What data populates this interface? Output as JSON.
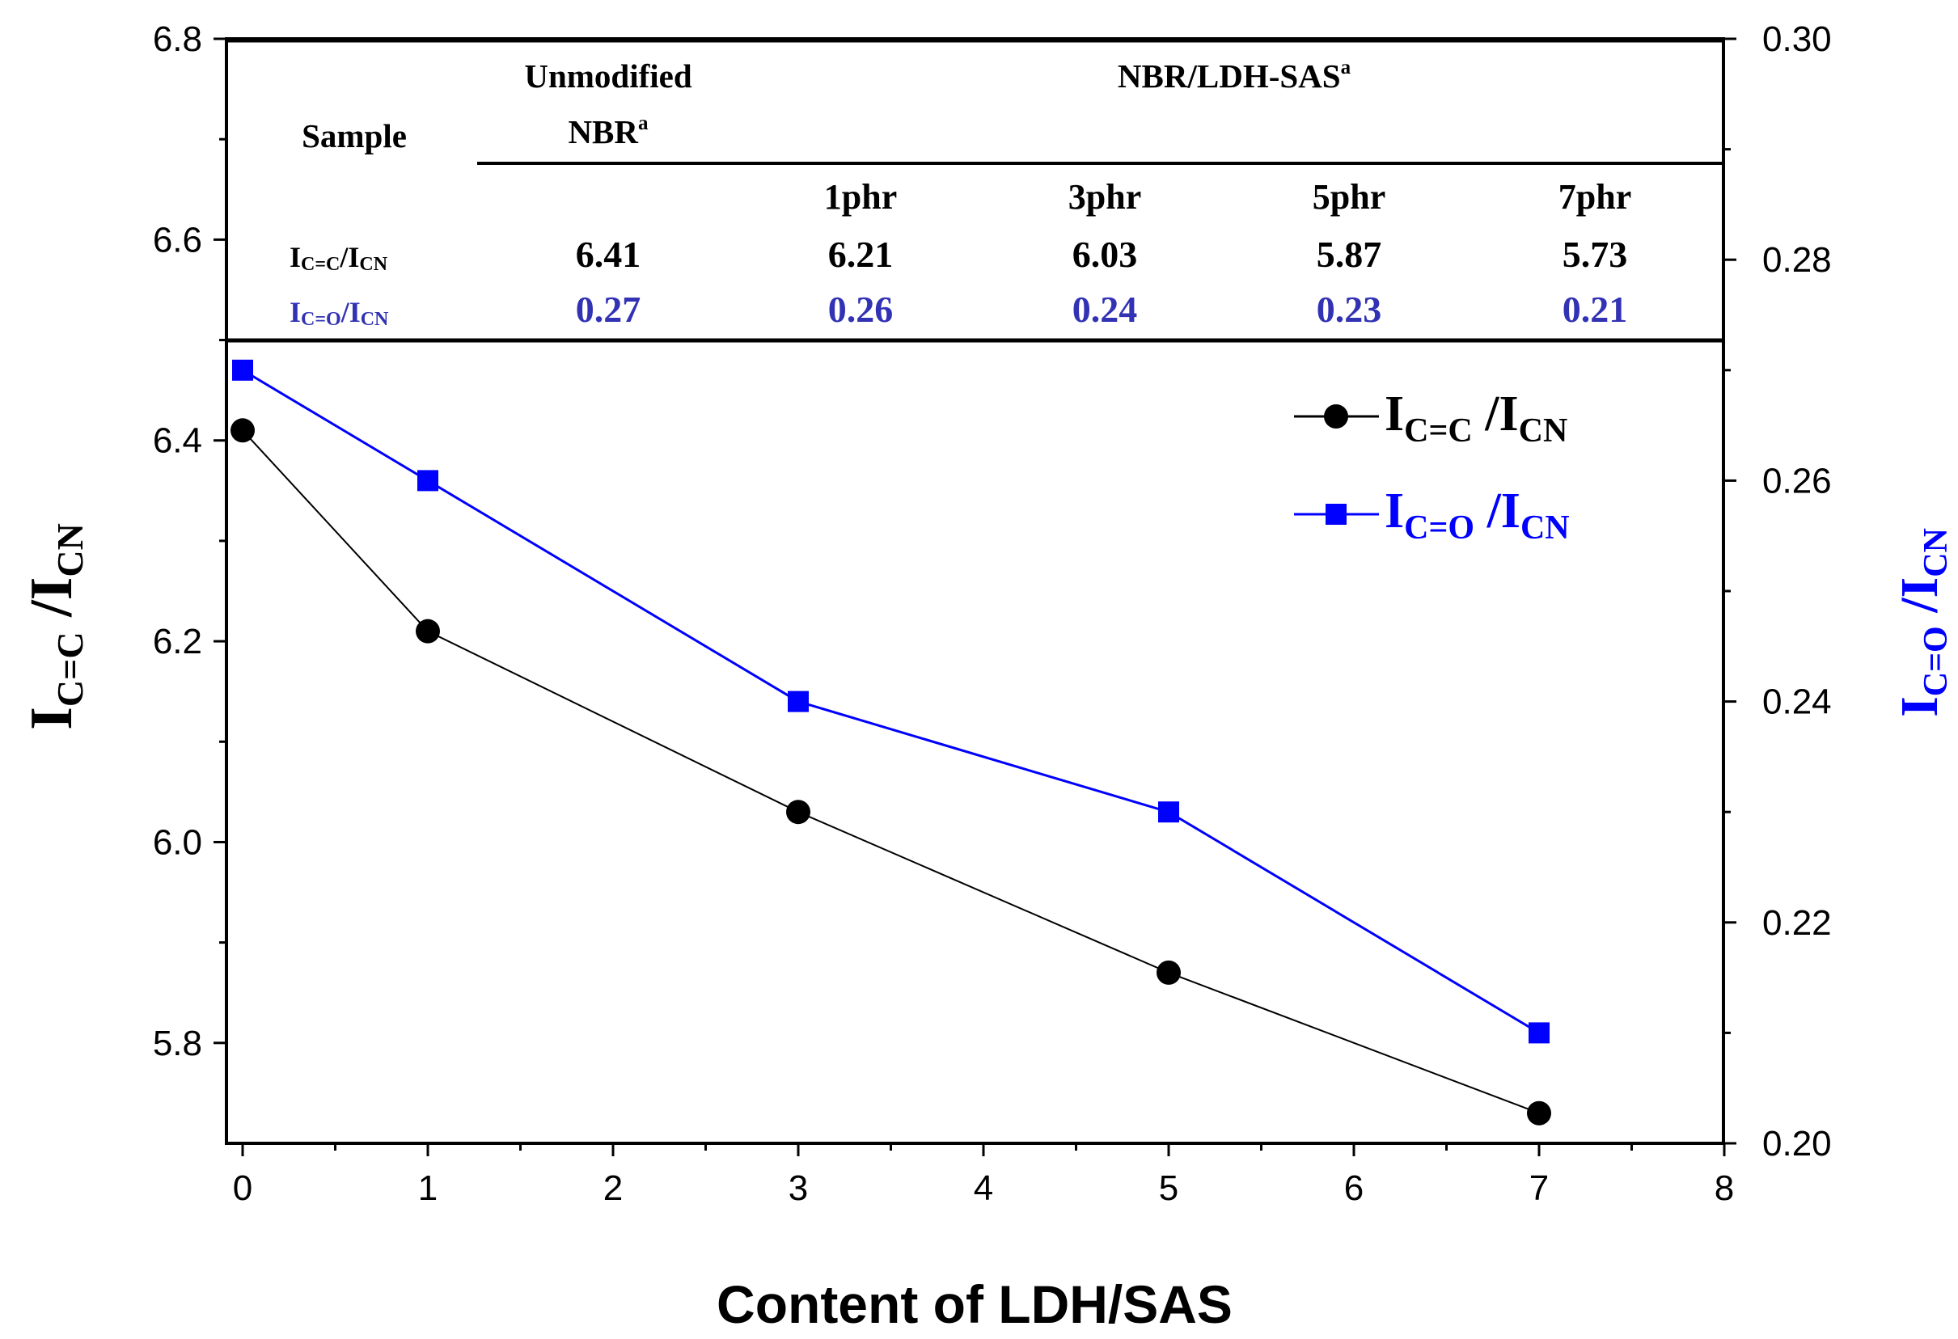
{
  "chart_data": {
    "type": "line",
    "xlabel": "Content of LDH/SAS",
    "ylabel_left": {
      "main": "I",
      "sub1": "C=C",
      "sep": " /I",
      "sub2": "CN"
    },
    "ylabel_right": {
      "main": "I",
      "sub1": "C=O",
      "sep": " /I",
      "sub2": "CN"
    },
    "xlim": [
      0,
      8
    ],
    "ylim_left": [
      5.7,
      6.8
    ],
    "ylim_right": [
      0.2,
      0.3
    ],
    "x_ticks": [
      "0",
      "1",
      "2",
      "3",
      "4",
      "5",
      "6",
      "7",
      "8"
    ],
    "y_left_ticks": [
      "5.8",
      "6.0",
      "6.2",
      "6.4",
      "6.6",
      "6.8"
    ],
    "y_right_ticks": [
      "0.20",
      "0.22",
      "0.24",
      "0.26",
      "0.28",
      "0.30"
    ],
    "x": [
      0,
      1,
      3,
      5,
      7
    ],
    "series": [
      {
        "name": "I C=C /I CN",
        "axis": "left",
        "color": "#000000",
        "marker": "circle",
        "values": [
          6.41,
          6.21,
          6.03,
          5.87,
          5.73
        ]
      },
      {
        "name": "I C=O /I CN",
        "axis": "right",
        "color": "#0000ff",
        "marker": "square",
        "values": [
          0.27,
          0.26,
          0.24,
          0.23,
          0.21
        ]
      }
    ],
    "legend": [
      {
        "main": "I",
        "sub1": "C=C",
        "sep": " /I",
        "sub2": "CN",
        "color": "#000000"
      },
      {
        "main": "I",
        "sub1": "C=O",
        "sep": " /I",
        "sub2": "CN",
        "color": "#0000ff"
      }
    ],
    "inset_table": {
      "sample_header": "Sample",
      "unmodified_line1": "Unmodified",
      "unmodified_line2": "NBR",
      "unmodified_sup": "a",
      "group_header": "NBR/LDH-SAS",
      "group_sup": "a",
      "loadings": [
        "1phr",
        "3phr",
        "5phr",
        "7phr"
      ],
      "row1_label": {
        "main": "I",
        "sub1": "C=C",
        "sep": "/I",
        "sub2": "CN"
      },
      "row2_label": {
        "main": "I",
        "sub1": "C=O",
        "sep": "/I",
        "sub2": "CN"
      },
      "row1_values": [
        "6.41",
        "6.21",
        "6.03",
        "5.87",
        "5.73"
      ],
      "row2_values": [
        "0.27",
        "0.26",
        "0.24",
        "0.23",
        "0.21"
      ]
    }
  }
}
